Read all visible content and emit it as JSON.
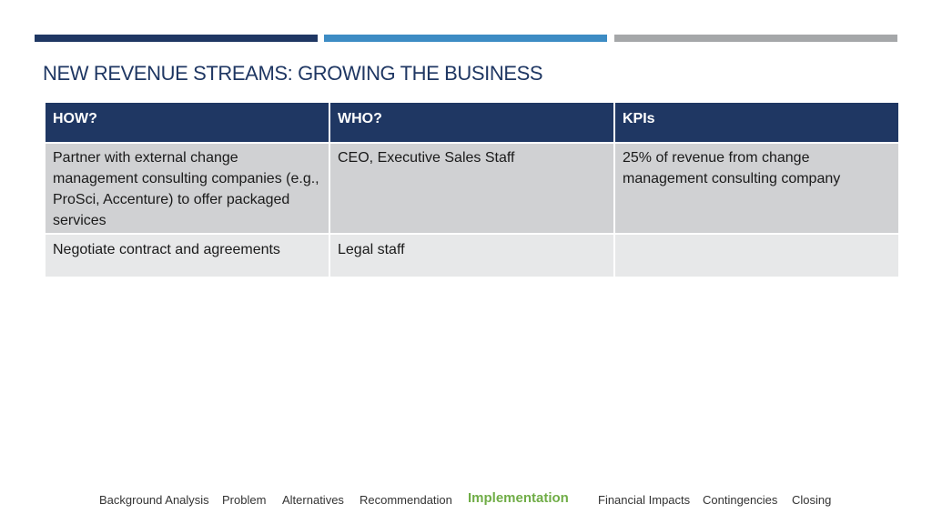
{
  "slide": {
    "title": "NEW REVENUE STREAMS: GROWING THE BUSINESS"
  },
  "table": {
    "headers": [
      "HOW?",
      "WHO?",
      "KPIs"
    ],
    "rows": [
      [
        "Partner with external change management consulting companies (e.g., ProSci, Accenture) to offer packaged services",
        "CEO, Executive Sales Staff",
        "25% of revenue from change management consulting company"
      ],
      [
        "Negotiate contract and agreements",
        "Legal staff",
        ""
      ]
    ]
  },
  "nav": {
    "items": [
      "Background Analysis",
      "Problem",
      "Alternatives",
      "Recommendation",
      "Implementation",
      "Financial Impacts",
      "Contingencies",
      "Closing"
    ],
    "active": "Implementation"
  },
  "colors": {
    "header_bg": "#1f3763",
    "accent_blue": "#3d8cc4",
    "accent_gray": "#a5a7a9",
    "row1_bg": "#d0d1d3",
    "row2_bg": "#e7e8e9",
    "nav_active": "#70ad47"
  }
}
